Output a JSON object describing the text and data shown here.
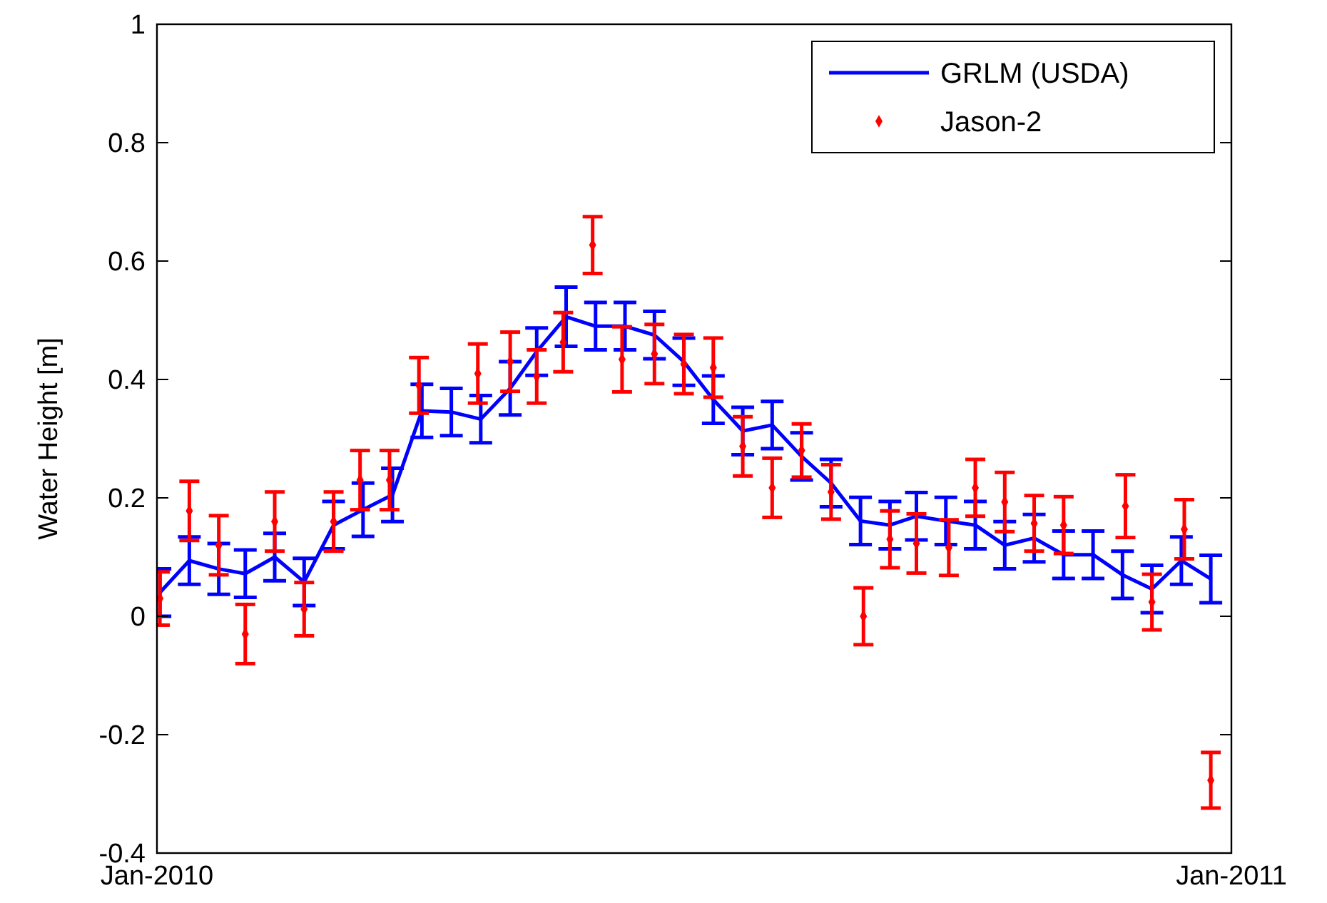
{
  "chart_data": {
    "type": "line",
    "ylabel": "Water Height [m]",
    "xlim": [
      "2010-01-01",
      "2011-01-01"
    ],
    "ylim": [
      -0.4,
      1
    ],
    "xticks": [
      {
        "value": "2010-01-01",
        "label": "Jan-2010"
      },
      {
        "value": "2011-01-01",
        "label": "Jan-2011"
      }
    ],
    "yticks": [
      -0.4,
      -0.2,
      0,
      0.2,
      0.4,
      0.6,
      0.8,
      1
    ],
    "grid": false,
    "legend": "top right",
    "series": [
      {
        "name": "GRLM (USDA)",
        "color": "#0000ff",
        "marker": "none",
        "line_style": "solid",
        "x": [
          "2010-01-02",
          "2010-01-12",
          "2010-01-22",
          "2010-01-31",
          "2010-02-10",
          "2010-02-20",
          "2010-03-02",
          "2010-03-12",
          "2010-03-22",
          "2010-04-01",
          "2010-04-11",
          "2010-04-21",
          "2010-05-01",
          "2010-05-10",
          "2010-05-20",
          "2010-05-30",
          "2010-06-09",
          "2010-06-19",
          "2010-06-29",
          "2010-07-09",
          "2010-07-19",
          "2010-07-29",
          "2010-08-08",
          "2010-08-18",
          "2010-08-28",
          "2010-09-07",
          "2010-09-16",
          "2010-09-26",
          "2010-10-06",
          "2010-10-16",
          "2010-10-26",
          "2010-11-05",
          "2010-11-15",
          "2010-11-25",
          "2010-12-05",
          "2010-12-15",
          "2010-12-25"
        ],
        "values": [
          0.04,
          0.094,
          0.08,
          0.072,
          0.1,
          0.058,
          0.154,
          0.18,
          0.205,
          0.347,
          0.345,
          0.333,
          0.385,
          0.447,
          0.506,
          0.49,
          0.49,
          0.475,
          0.43,
          0.366,
          0.313,
          0.323,
          0.27,
          0.225,
          0.161,
          0.154,
          0.169,
          0.161,
          0.154,
          0.12,
          0.132,
          0.104,
          0.104,
          0.07,
          0.046,
          0.094,
          0.063
        ],
        "errors": [
          0.04,
          0.04,
          0.043,
          0.04,
          0.04,
          0.04,
          0.04,
          0.045,
          0.045,
          0.045,
          0.04,
          0.04,
          0.045,
          0.04,
          0.05,
          0.04,
          0.04,
          0.04,
          0.04,
          0.04,
          0.04,
          0.04,
          0.04,
          0.04,
          0.04,
          0.04,
          0.04,
          0.04,
          0.04,
          0.04,
          0.04,
          0.04,
          0.04,
          0.04,
          0.04,
          0.04,
          0.04
        ]
      },
      {
        "name": "Jason-2",
        "type": "scatter",
        "color": "#ff0000",
        "marker": "diamond",
        "x": [
          "2010-01-02",
          "2010-01-12",
          "2010-01-22",
          "2010-01-31",
          "2010-02-10",
          "2010-02-20",
          "2010-03-02",
          "2010-03-11",
          "2010-03-21",
          "2010-03-31",
          "2010-04-20",
          "2010-05-01",
          "2010-05-10",
          "2010-05-19",
          "2010-05-29",
          "2010-06-08",
          "2010-06-19",
          "2010-06-29",
          "2010-07-09",
          "2010-07-19",
          "2010-07-29",
          "2010-08-08",
          "2010-08-18",
          "2010-08-29",
          "2010-09-07",
          "2010-09-16",
          "2010-09-27",
          "2010-10-06",
          "2010-10-16",
          "2010-10-26",
          "2010-11-05",
          "2010-11-26",
          "2010-12-05",
          "2010-12-16",
          "2010-12-25"
        ],
        "values": [
          0.03,
          0.178,
          0.12,
          -0.03,
          0.16,
          0.012,
          0.16,
          0.23,
          0.23,
          0.39,
          0.41,
          0.43,
          0.405,
          0.463,
          0.627,
          0.434,
          0.443,
          0.426,
          0.42,
          0.287,
          0.217,
          0.28,
          0.21,
          0,
          0.13,
          0.123,
          0.116,
          0.217,
          0.193,
          0.157,
          0.154,
          0.186,
          0.024,
          0.147,
          -0.277
        ],
        "errors": [
          0.045,
          0.05,
          0.05,
          0.05,
          0.05,
          0.045,
          0.05,
          0.05,
          0.05,
          0.047,
          0.05,
          0.05,
          0.045,
          0.05,
          0.048,
          0.055,
          0.05,
          0.05,
          0.05,
          0.05,
          0.05,
          0.045,
          0.046,
          0.048,
          0.048,
          0.05,
          0.047,
          0.048,
          0.05,
          0.047,
          0.048,
          0.053,
          0.047,
          0.05,
          0.047
        ]
      }
    ]
  }
}
